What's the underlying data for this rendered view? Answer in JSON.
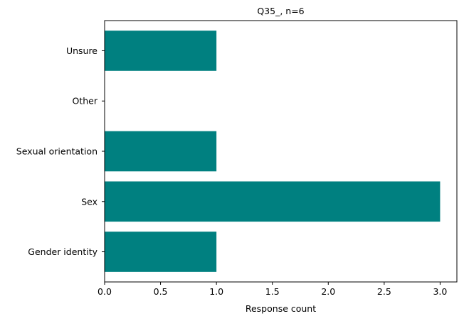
{
  "chart_data": {
    "type": "bar",
    "orientation": "horizontal",
    "title": "Q35_, n=6",
    "xlabel": "Response count",
    "ylabel": "",
    "categories": [
      "Gender identity",
      "Sex",
      "Sexual orientation",
      "Other",
      "Unsure"
    ],
    "values": [
      1,
      3,
      1,
      0,
      1
    ],
    "xlim": [
      0,
      3.15
    ],
    "xticks": [
      0.0,
      0.5,
      1.0,
      1.5,
      2.0,
      2.5,
      3.0
    ],
    "xtick_labels": [
      "0.0",
      "0.5",
      "1.0",
      "1.5",
      "2.0",
      "2.5",
      "3.0"
    ],
    "bar_color": "#008080",
    "grid": false,
    "legend": "none"
  }
}
